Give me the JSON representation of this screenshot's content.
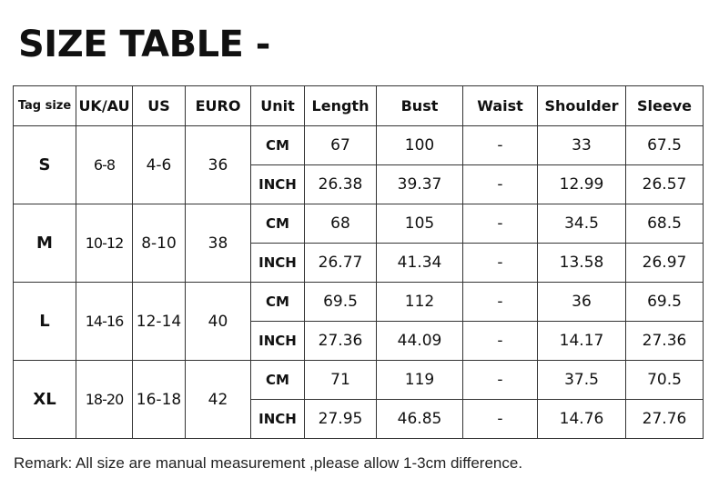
{
  "title": "SIZE TABLE -",
  "headers": [
    "Tag size",
    "UK/AU",
    "US",
    "EURO",
    "Unit",
    "Length",
    "Bust",
    "Waist",
    "Shoulder",
    "Sleeve"
  ],
  "rows": [
    {
      "tag": "S",
      "uk": "6-8",
      "us": "4-6",
      "euro": "36",
      "cm": [
        "67",
        "100",
        "-",
        "33",
        "67.5"
      ],
      "inch": [
        "26.38",
        "39.37",
        "-",
        "12.99",
        "26.57"
      ]
    },
    {
      "tag": "M",
      "uk": "10-12",
      "us": "8-10",
      "euro": "38",
      "cm": [
        "68",
        "105",
        "-",
        "34.5",
        "68.5"
      ],
      "inch": [
        "26.77",
        "41.34",
        "-",
        "13.58",
        "26.97"
      ]
    },
    {
      "tag": "L",
      "uk": "14-16",
      "us": "12-14",
      "euro": "40",
      "cm": [
        "69.5",
        "112",
        "-",
        "36",
        "69.5"
      ],
      "inch": [
        "27.36",
        "44.09",
        "-",
        "14.17",
        "27.36"
      ]
    },
    {
      "tag": "XL",
      "uk": "18-20",
      "us": "16-18",
      "euro": "42",
      "cm": [
        "71",
        "119",
        "-",
        "37.5",
        "70.5"
      ],
      "inch": [
        "27.95",
        "46.85",
        "-",
        "14.76",
        "27.76"
      ]
    }
  ],
  "units": {
    "cm": "CM",
    "inch": "INCH"
  },
  "remark": "Remark: All size are manual measurement ,please allow 1-3cm difference."
}
